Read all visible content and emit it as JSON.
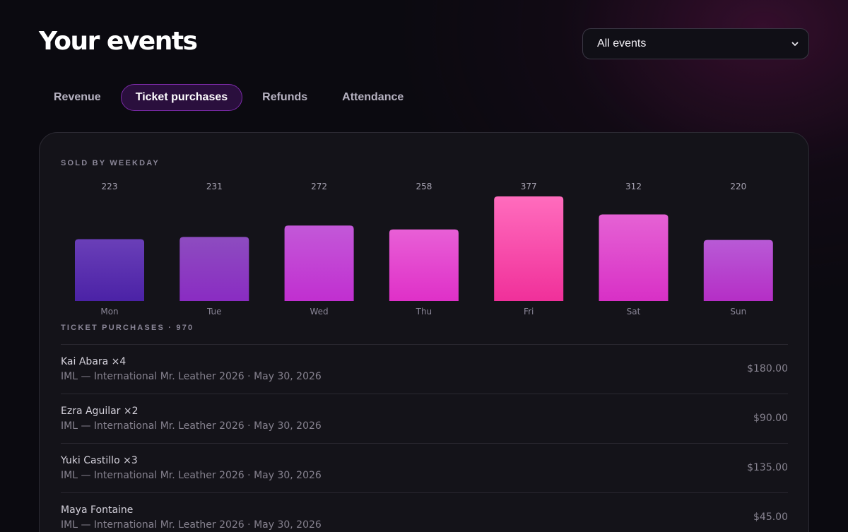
{
  "header": {
    "title": "Your events",
    "event_filter": {
      "selected": "All events"
    }
  },
  "tabs": [
    {
      "label": "Revenue",
      "active": false
    },
    {
      "label": "Ticket purchases",
      "active": true
    },
    {
      "label": "Refunds",
      "active": false
    },
    {
      "label": "Attendance",
      "active": false
    }
  ],
  "chart_section": {
    "label": "SOLD BY WEEKDAY"
  },
  "chart_data": {
    "type": "bar",
    "title": "SOLD BY WEEKDAY",
    "categories": [
      "Mon",
      "Tue",
      "Wed",
      "Thu",
      "Fri",
      "Sat",
      "Sun"
    ],
    "values": [
      223,
      231,
      272,
      258,
      377,
      312,
      220
    ],
    "xlabel": "",
    "ylabel": "",
    "ylim": [
      0,
      377
    ],
    "grid": false,
    "legend": "none",
    "bar_colors_top": [
      "#6a3fb8",
      "#8d4cc0",
      "#c258d8",
      "#e85fd6",
      "#ff6cbd",
      "#e562d4",
      "#b85ad6"
    ],
    "bar_colors_bottom": [
      "#4b22a6",
      "#8a2cc2",
      "#c12fd0",
      "#df30c8",
      "#f0309a",
      "#d830c6",
      "#b52ec6"
    ]
  },
  "purchases": {
    "label": "TICKET PURCHASES · 970",
    "items": [
      {
        "name": "Kai Abara ×4",
        "event": "IML — International Mr. Leather 2026 · May 30, 2026",
        "amount": "$180.00"
      },
      {
        "name": "Ezra Aguilar ×2",
        "event": "IML — International Mr. Leather 2026 · May 30, 2026",
        "amount": "$90.00"
      },
      {
        "name": "Yuki Castillo ×3",
        "event": "IML — International Mr. Leather 2026 · May 30, 2026",
        "amount": "$135.00"
      },
      {
        "name": "Maya Fontaine",
        "event": "IML — International Mr. Leather 2026 · May 30, 2026",
        "amount": "$45.00"
      }
    ]
  },
  "colors": {
    "accent": "#7a2aa6",
    "tab_active_bg": "#2a0f3d",
    "card_bg": "#141319",
    "page_bg": "#0b0a10"
  }
}
